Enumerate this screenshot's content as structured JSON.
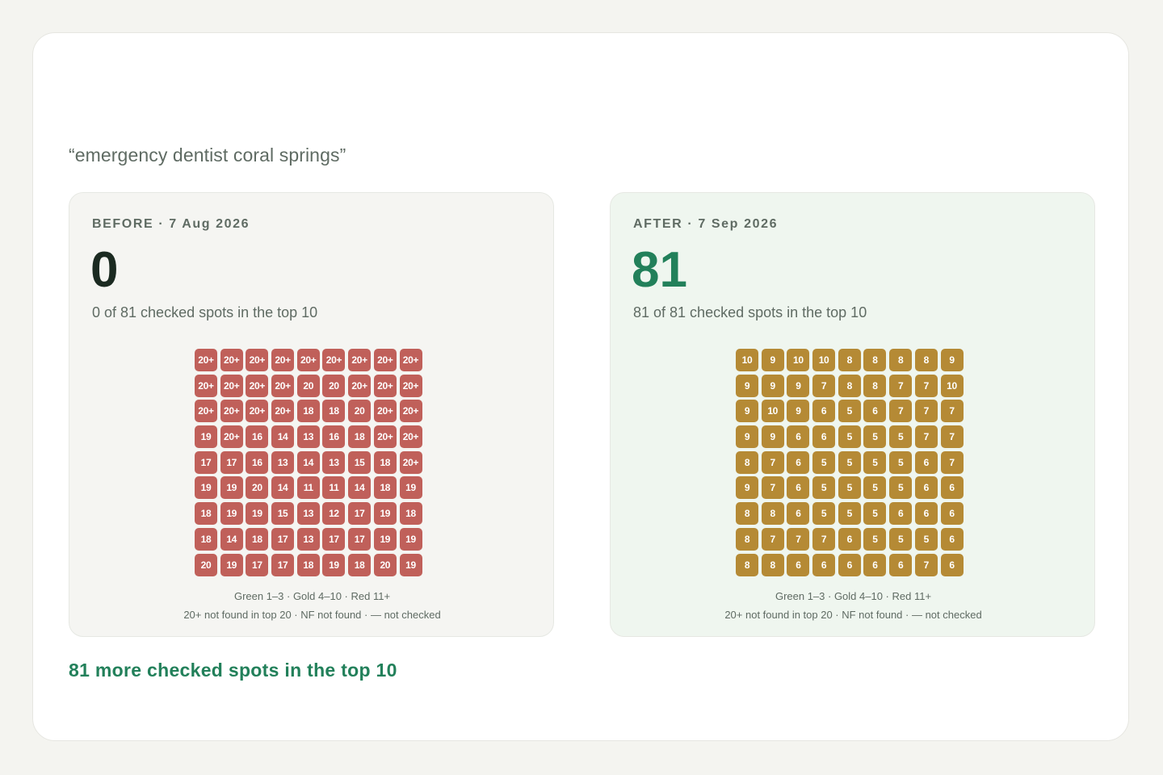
{
  "query": "“emergency dentist coral springs”",
  "colors": {
    "red": "#c0605a",
    "gold": "#b58a35",
    "green": "#22805a"
  },
  "before": {
    "label": "BEFORE · 7 Aug 2026",
    "count": "0",
    "summary": "0 of 81 checked spots in the top 10",
    "grid": [
      [
        "20+",
        "20+",
        "20+",
        "20+",
        "20+",
        "20+",
        "20+",
        "20+",
        "20+"
      ],
      [
        "20+",
        "20+",
        "20+",
        "20+",
        "20",
        "20",
        "20+",
        "20+",
        "20+"
      ],
      [
        "20+",
        "20+",
        "20+",
        "20+",
        "18",
        "18",
        "20",
        "20+",
        "20+"
      ],
      [
        "19",
        "20+",
        "16",
        "14",
        "13",
        "16",
        "18",
        "20+",
        "20+"
      ],
      [
        "17",
        "17",
        "16",
        "13",
        "14",
        "13",
        "15",
        "18",
        "20+"
      ],
      [
        "19",
        "19",
        "20",
        "14",
        "11",
        "11",
        "14",
        "18",
        "19"
      ],
      [
        "18",
        "19",
        "19",
        "15",
        "13",
        "12",
        "17",
        "19",
        "18"
      ],
      [
        "18",
        "14",
        "18",
        "17",
        "13",
        "17",
        "17",
        "19",
        "19"
      ],
      [
        "20",
        "19",
        "17",
        "17",
        "18",
        "19",
        "18",
        "20",
        "19"
      ]
    ],
    "legend_line1": "Green 1–3 · Gold 4–10 · Red 11+",
    "legend_line2": "20+ not found in top 20 · NF not found · — not checked"
  },
  "after": {
    "label": "AFTER · 7 Sep 2026",
    "count": "81",
    "summary": "81 of 81 checked spots in the top 10",
    "grid": [
      [
        "10",
        "9",
        "10",
        "10",
        "8",
        "8",
        "8",
        "8",
        "9"
      ],
      [
        "9",
        "9",
        "9",
        "7",
        "8",
        "8",
        "7",
        "7",
        "10"
      ],
      [
        "9",
        "10",
        "9",
        "6",
        "5",
        "6",
        "7",
        "7",
        "7"
      ],
      [
        "9",
        "9",
        "6",
        "6",
        "5",
        "5",
        "5",
        "7",
        "7"
      ],
      [
        "8",
        "7",
        "6",
        "5",
        "5",
        "5",
        "5",
        "6",
        "7"
      ],
      [
        "9",
        "7",
        "6",
        "5",
        "5",
        "5",
        "5",
        "6",
        "6"
      ],
      [
        "8",
        "8",
        "6",
        "5",
        "5",
        "5",
        "6",
        "6",
        "6"
      ],
      [
        "8",
        "7",
        "7",
        "7",
        "6",
        "5",
        "5",
        "5",
        "6"
      ],
      [
        "8",
        "8",
        "6",
        "6",
        "6",
        "6",
        "6",
        "7",
        "6"
      ]
    ],
    "legend_line1": "Green 1–3 · Gold 4–10 · Red 11+",
    "legend_line2": "20+ not found in top 20 · NF not found · — not checked"
  },
  "footer": "81 more checked spots in the top 10"
}
